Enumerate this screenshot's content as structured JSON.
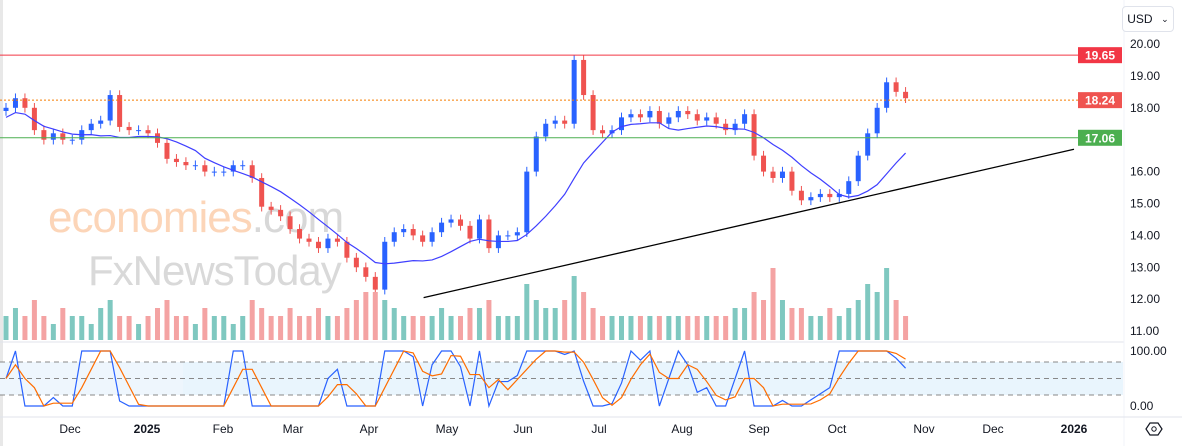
{
  "currency": {
    "label": "USD",
    "icon": "chevron-down-icon"
  },
  "watermark": {
    "line1": "economies",
    "line1_suffix": ".com",
    "line2": "FxNewsToday"
  },
  "settings_icon": "gear-icon",
  "chart_data": {
    "type": "candlestick",
    "price_axis": {
      "ticks": [
        "20.00",
        "19.00",
        "18.00",
        "16.00",
        "15.00",
        "14.00",
        "13.00",
        "12.00",
        "11.00"
      ],
      "range": [
        11,
        20
      ]
    },
    "time_axis": {
      "ticks": [
        "Dec",
        "2025",
        "Feb",
        "Mar",
        "Apr",
        "May",
        "Jun",
        "Jul",
        "Aug",
        "Sep",
        "Oct",
        "Nov",
        "Dec",
        "2026"
      ]
    },
    "levels": [
      {
        "value": 19.65,
        "label": "19.65",
        "color": "#f23645",
        "style": "solid"
      },
      {
        "value": 18.24,
        "label": "18.24",
        "color": "#f57c00",
        "style": "dotted",
        "badge": "#ef5350"
      },
      {
        "value": 17.06,
        "label": "17.06",
        "color": "#4caf50",
        "style": "solid"
      }
    ],
    "trendline": {
      "from": {
        "month_index": 4.7,
        "price": 12.05
      },
      "to": {
        "month_index": 13.0,
        "price": 16.7
      }
    },
    "closes": [
      18.0,
      18.3,
      18.0,
      17.3,
      17.0,
      17.2,
      17.0,
      17.0,
      17.3,
      17.5,
      17.6,
      18.4,
      17.4,
      17.3,
      17.3,
      17.2,
      16.9,
      16.4,
      16.3,
      16.2,
      16.2,
      16.0,
      16.0,
      16.0,
      16.2,
      16.2,
      15.8,
      14.9,
      14.8,
      14.6,
      14.2,
      13.9,
      13.8,
      13.6,
      13.9,
      13.8,
      13.3,
      13.0,
      12.7,
      12.3,
      13.8,
      14.1,
      14.2,
      14.0,
      13.8,
      14.1,
      14.4,
      14.5,
      14.3,
      13.9,
      14.5,
      13.6,
      14.0,
      14.0,
      14.1,
      16.0,
      17.1,
      17.5,
      17.6,
      17.5,
      19.5,
      18.4,
      17.3,
      17.2,
      17.3,
      17.7,
      17.8,
      17.7,
      17.9,
      17.5,
      17.7,
      17.9,
      17.8,
      17.6,
      17.7,
      17.5,
      17.3,
      17.5,
      17.8,
      16.5,
      16.0,
      15.8,
      16.0,
      15.4,
      15.1,
      15.2,
      15.3,
      15.2,
      15.3,
      15.7,
      16.5,
      17.2,
      18.0,
      18.8,
      18.5,
      18.3
    ],
    "volumes": [
      3,
      4,
      3,
      5,
      3,
      2,
      4,
      3,
      3,
      2,
      4,
      5,
      3,
      3,
      2,
      3,
      4,
      5,
      3,
      3,
      2,
      4,
      3,
      3,
      2,
      3,
      5,
      4,
      3,
      3,
      4,
      3,
      3,
      4,
      3,
      3,
      4,
      5,
      6,
      6,
      5,
      4,
      3,
      3,
      3,
      3,
      4,
      3,
      3,
      4,
      4,
      5,
      3,
      3,
      3,
      7,
      5,
      4,
      4,
      5,
      8,
      6,
      4,
      3,
      3,
      3,
      3,
      3,
      3,
      3,
      3,
      3,
      3,
      3,
      3,
      3,
      3,
      4,
      4,
      6,
      5,
      9,
      5,
      4,
      4,
      3,
      3,
      4,
      3,
      4,
      5,
      7,
      6,
      9,
      5,
      3
    ],
    "moving_average": {
      "color": "#3f3fff"
    },
    "stochastic": {
      "ticks": [
        "100.00",
        "0.00"
      ],
      "bands": [
        20,
        50,
        80
      ]
    },
    "colors": {
      "up": "#2962ff",
      "down": "#ef5350",
      "vol_up": "#7fc8c0",
      "vol_down": "#f4a3a3"
    }
  }
}
